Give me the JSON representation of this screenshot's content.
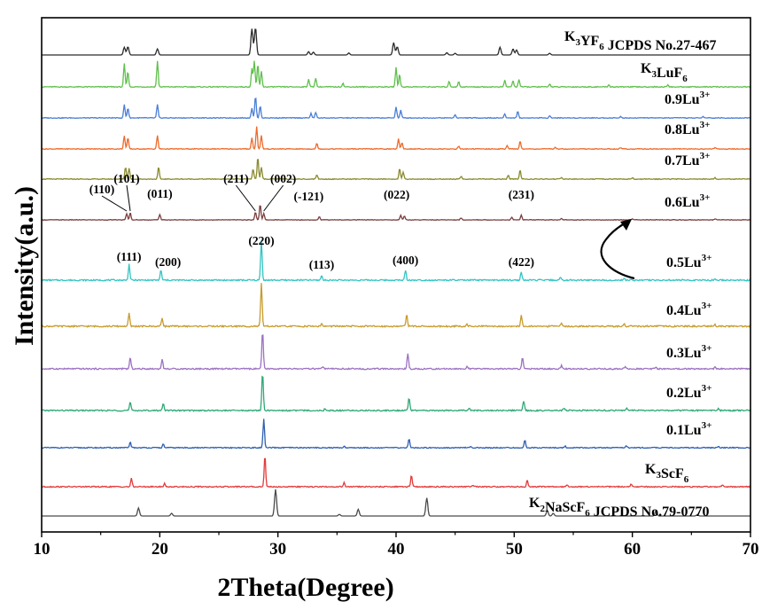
{
  "chart_data": {
    "type": "line",
    "xlabel": "2Theta(Degree)",
    "ylabel": "Intensity(a.u.)",
    "xlim": [
      10,
      70
    ],
    "x_ticks": [
      "10",
      "20",
      "30",
      "40",
      "50",
      "60",
      "70"
    ],
    "y_ticks_labeled": false,
    "grid": false,
    "legend": "none",
    "series": [
      {
        "name": "K3YF6 JCPDS No.27-467",
        "name_parts": [
          [
            "K",
            ""
          ],
          [
            "3",
            "sub"
          ],
          [
            "YF",
            ""
          ],
          [
            "6",
            "sub"
          ],
          [
            " JCPDS No.27-467",
            ""
          ]
        ],
        "color": "#2b2b2b",
        "kind": "reference",
        "peaks": [
          [
            17.0,
            0.28
          ],
          [
            17.3,
            0.3
          ],
          [
            19.8,
            0.22
          ],
          [
            27.8,
            0.95
          ],
          [
            28.1,
            1.0
          ],
          [
            32.6,
            0.12
          ],
          [
            33.0,
            0.1
          ],
          [
            36.0,
            0.07
          ],
          [
            39.8,
            0.45
          ],
          [
            40.1,
            0.3
          ],
          [
            44.3,
            0.08
          ],
          [
            45.0,
            0.06
          ],
          [
            48.8,
            0.28
          ],
          [
            49.9,
            0.22
          ],
          [
            50.2,
            0.18
          ],
          [
            53.0,
            0.06
          ]
        ]
      },
      {
        "name": "K3LuF6",
        "name_parts": [
          [
            "K",
            ""
          ],
          [
            "3",
            "sub"
          ],
          [
            "LuF",
            ""
          ],
          [
            "6",
            "sub"
          ]
        ],
        "color": "#5fc04c",
        "kind": "measured",
        "peaks": [
          [
            17.0,
            0.9
          ],
          [
            17.3,
            0.6
          ],
          [
            19.8,
            1.0
          ],
          [
            27.8,
            0.7
          ],
          [
            28.0,
            1.0
          ],
          [
            28.3,
            0.9
          ],
          [
            28.6,
            0.6
          ],
          [
            32.6,
            0.3
          ],
          [
            33.2,
            0.35
          ],
          [
            35.5,
            0.15
          ],
          [
            40.0,
            0.75
          ],
          [
            40.3,
            0.5
          ],
          [
            44.5,
            0.22
          ],
          [
            45.3,
            0.2
          ],
          [
            49.2,
            0.25
          ],
          [
            49.9,
            0.25
          ],
          [
            50.4,
            0.3
          ],
          [
            53.0,
            0.12
          ],
          [
            58.0,
            0.08
          ],
          [
            63.0,
            0.07
          ]
        ]
      },
      {
        "name": "0.9Lu3+",
        "name_parts": [
          [
            "0.9Lu",
            ""
          ],
          [
            "3+",
            "sup"
          ]
        ],
        "color": "#4a7ed6",
        "kind": "measured",
        "peaks": [
          [
            17.0,
            0.6
          ],
          [
            17.3,
            0.45
          ],
          [
            19.8,
            0.6
          ],
          [
            27.8,
            0.45
          ],
          [
            28.1,
            1.0
          ],
          [
            28.5,
            0.55
          ],
          [
            32.8,
            0.2
          ],
          [
            33.2,
            0.25
          ],
          [
            40.0,
            0.5
          ],
          [
            40.4,
            0.35
          ],
          [
            45.0,
            0.15
          ],
          [
            49.2,
            0.18
          ],
          [
            50.3,
            0.3
          ],
          [
            53.0,
            0.1
          ],
          [
            59.0,
            0.06
          ],
          [
            66.0,
            0.06
          ]
        ]
      },
      {
        "name": "0.8Lu3+",
        "name_parts": [
          [
            "0.8Lu",
            ""
          ],
          [
            "3+",
            "sup"
          ]
        ],
        "color": "#ee6a2a",
        "kind": "measured",
        "peaks": [
          [
            17.0,
            0.6
          ],
          [
            17.3,
            0.5
          ],
          [
            19.8,
            0.6
          ],
          [
            27.8,
            0.5
          ],
          [
            28.2,
            1.0
          ],
          [
            28.6,
            0.6
          ],
          [
            33.3,
            0.25
          ],
          [
            40.2,
            0.45
          ],
          [
            40.5,
            0.3
          ],
          [
            45.3,
            0.12
          ],
          [
            49.4,
            0.15
          ],
          [
            50.5,
            0.35
          ],
          [
            53.5,
            0.08
          ],
          [
            59.0,
            0.06
          ],
          [
            67.0,
            0.06
          ]
        ]
      },
      {
        "name": "0.7Lu3+",
        "name_parts": [
          [
            "0.7Lu",
            ""
          ],
          [
            "3+",
            "sup"
          ]
        ],
        "color": "#8a8a2e",
        "kind": "measured",
        "peaks": [
          [
            17.1,
            0.55
          ],
          [
            17.4,
            0.5
          ],
          [
            19.9,
            0.55
          ],
          [
            27.9,
            0.45
          ],
          [
            28.3,
            1.0
          ],
          [
            28.6,
            0.55
          ],
          [
            33.3,
            0.2
          ],
          [
            40.3,
            0.5
          ],
          [
            40.6,
            0.3
          ],
          [
            45.5,
            0.12
          ],
          [
            49.5,
            0.18
          ],
          [
            50.5,
            0.4
          ],
          [
            54.0,
            0.08
          ],
          [
            60.0,
            0.06
          ],
          [
            67.0,
            0.06
          ]
        ]
      },
      {
        "name": "0.6Lu3+",
        "name_parts": [
          [
            "0.6Lu",
            ""
          ],
          [
            "3+",
            "sup"
          ]
        ],
        "color": "#7a3e3e",
        "kind": "measured",
        "peaks": [
          [
            17.2,
            0.4
          ],
          [
            17.5,
            0.45
          ],
          [
            20.0,
            0.35
          ],
          [
            28.1,
            0.5
          ],
          [
            28.5,
            1.0
          ],
          [
            28.8,
            0.4
          ],
          [
            33.5,
            0.2
          ],
          [
            40.4,
            0.3
          ],
          [
            40.7,
            0.25
          ],
          [
            45.5,
            0.12
          ],
          [
            49.8,
            0.15
          ],
          [
            50.6,
            0.3
          ],
          [
            54.0,
            0.08
          ],
          [
            60.0,
            0.06
          ],
          [
            67.0,
            0.06
          ]
        ]
      },
      {
        "name": "0.5Lu3+",
        "name_parts": [
          [
            "0.5Lu",
            ""
          ],
          [
            "3+",
            "sup"
          ]
        ],
        "color": "#33c4c4",
        "kind": "measured",
        "peaks": [
          [
            17.4,
            0.4
          ],
          [
            20.1,
            0.25
          ],
          [
            28.6,
            1.0
          ],
          [
            33.7,
            0.12
          ],
          [
            40.8,
            0.25
          ],
          [
            50.6,
            0.2
          ],
          [
            53.9,
            0.06
          ],
          [
            59.3,
            0.04
          ],
          [
            67.0,
            0.03
          ]
        ]
      },
      {
        "name": "0.4Lu3+",
        "name_parts": [
          [
            "0.4Lu",
            ""
          ],
          [
            "3+",
            "sup"
          ]
        ],
        "color": "#c89b2c",
        "kind": "measured",
        "peaks": [
          [
            17.4,
            0.3
          ],
          [
            20.2,
            0.2
          ],
          [
            28.6,
            1.0
          ],
          [
            33.7,
            0.06
          ],
          [
            40.9,
            0.3
          ],
          [
            46.0,
            0.05
          ],
          [
            50.6,
            0.25
          ],
          [
            54.0,
            0.06
          ],
          [
            59.3,
            0.05
          ],
          [
            67.0,
            0.04
          ]
        ]
      },
      {
        "name": "0.3Lu3+",
        "name_parts": [
          [
            "0.3Lu",
            ""
          ],
          [
            "3+",
            "sup"
          ]
        ],
        "color": "#9b71c2",
        "kind": "measured",
        "peaks": [
          [
            17.5,
            0.3
          ],
          [
            20.2,
            0.25
          ],
          [
            28.7,
            1.0
          ],
          [
            33.8,
            0.06
          ],
          [
            41.0,
            0.4
          ],
          [
            46.0,
            0.05
          ],
          [
            50.7,
            0.3
          ],
          [
            54.0,
            0.08
          ],
          [
            59.4,
            0.07
          ],
          [
            62.0,
            0.04
          ],
          [
            67.0,
            0.04
          ]
        ]
      },
      {
        "name": "0.2Lu3+",
        "name_parts": [
          [
            "0.2Lu",
            ""
          ],
          [
            "3+",
            "sup"
          ]
        ],
        "color": "#2ea877",
        "kind": "measured",
        "peaks": [
          [
            17.5,
            0.22
          ],
          [
            20.3,
            0.2
          ],
          [
            28.7,
            1.0
          ],
          [
            34.0,
            0.05
          ],
          [
            41.1,
            0.35
          ],
          [
            46.2,
            0.05
          ],
          [
            50.8,
            0.25
          ],
          [
            54.2,
            0.06
          ],
          [
            59.5,
            0.06
          ],
          [
            67.3,
            0.05
          ]
        ]
      },
      {
        "name": "0.1Lu3+",
        "name_parts": [
          [
            "0.1Lu",
            ""
          ],
          [
            "3+",
            "sup"
          ]
        ],
        "color": "#2e5fb0",
        "kind": "measured",
        "peaks": [
          [
            17.5,
            0.2
          ],
          [
            20.3,
            0.12
          ],
          [
            28.8,
            1.0
          ],
          [
            35.6,
            0.05
          ],
          [
            41.1,
            0.3
          ],
          [
            46.3,
            0.05
          ],
          [
            50.9,
            0.25
          ],
          [
            54.3,
            0.06
          ],
          [
            59.5,
            0.07
          ],
          [
            67.3,
            0.05
          ]
        ]
      },
      {
        "name": "K3ScF6",
        "name_parts": [
          [
            "K",
            ""
          ],
          [
            "3",
            "sub"
          ],
          [
            "ScF",
            ""
          ],
          [
            "6",
            "sub"
          ]
        ],
        "color": "#e33a3a",
        "kind": "measured",
        "peaks": [
          [
            17.6,
            0.25
          ],
          [
            20.4,
            0.1
          ],
          [
            28.9,
            1.0
          ],
          [
            35.6,
            0.12
          ],
          [
            41.3,
            0.35
          ],
          [
            46.5,
            0.06
          ],
          [
            51.1,
            0.2
          ],
          [
            54.5,
            0.05
          ],
          [
            59.9,
            0.08
          ],
          [
            67.6,
            0.05
          ]
        ]
      },
      {
        "name": "K2NaScF6 JCPDS No.79-0770",
        "name_parts": [
          [
            "K",
            ""
          ],
          [
            "2",
            "sub"
          ],
          [
            "NaScF",
            ""
          ],
          [
            "6",
            "sub"
          ],
          [
            " JCPDS No.79-0770",
            ""
          ]
        ],
        "color": "#4a4a4a",
        "kind": "reference",
        "peaks": [
          [
            18.2,
            0.3
          ],
          [
            21.0,
            0.1
          ],
          [
            29.8,
            1.0
          ],
          [
            35.2,
            0.06
          ],
          [
            36.8,
            0.25
          ],
          [
            42.6,
            0.68
          ],
          [
            52.8,
            0.2
          ],
          [
            53.3,
            0.1
          ],
          [
            62.0,
            0.2
          ],
          [
            65.5,
            0.05
          ]
        ]
      }
    ],
    "annotations": [
      {
        "text": "(110)",
        "series": "0.6Lu3+",
        "x": 17.2
      },
      {
        "text": "(101)",
        "series": "0.6Lu3+",
        "x": 17.5
      },
      {
        "text": "(011)",
        "series": "0.6Lu3+",
        "x": 20.0
      },
      {
        "text": "(211)",
        "series": "0.6Lu3+",
        "x": 28.1
      },
      {
        "text": "(002)",
        "series": "0.6Lu3+",
        "x": 28.8
      },
      {
        "text": "(-121)",
        "series": "0.6Lu3+",
        "x": 33.5
      },
      {
        "text": "(022)",
        "series": "0.6Lu3+",
        "x": 40.5
      },
      {
        "text": "(231)",
        "series": "0.6Lu3+",
        "x": 50.6
      },
      {
        "text": "(111)",
        "series": "0.5Lu3+",
        "x": 17.4
      },
      {
        "text": "(200)",
        "series": "0.5Lu3+",
        "x": 20.1
      },
      {
        "text": "(220)",
        "series": "0.5Lu3+",
        "x": 28.6
      },
      {
        "text": "(113)",
        "series": "0.5Lu3+",
        "x": 33.7
      },
      {
        "text": "(400)",
        "series": "0.5Lu3+",
        "x": 40.8
      },
      {
        "text": "(422)",
        "series": "0.5Lu3+",
        "x": 50.6
      }
    ]
  }
}
